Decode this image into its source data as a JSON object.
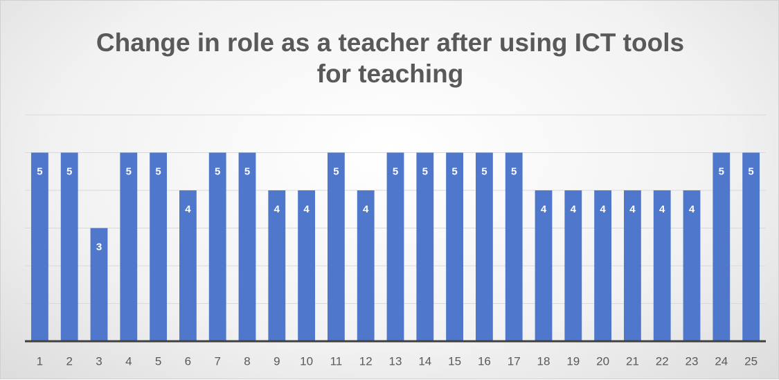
{
  "chart_data": {
    "type": "bar",
    "title": "Change in role as a teacher after using ICT tools for teaching",
    "categories": [
      "1",
      "2",
      "3",
      "4",
      "5",
      "6",
      "7",
      "8",
      "9",
      "10",
      "11",
      "12",
      "13",
      "14",
      "15",
      "16",
      "17",
      "18",
      "19",
      "20",
      "21",
      "22",
      "23",
      "24",
      "25"
    ],
    "values": [
      5,
      5,
      3,
      5,
      5,
      4,
      5,
      5,
      4,
      4,
      5,
      4,
      5,
      5,
      5,
      5,
      5,
      4,
      4,
      4,
      4,
      4,
      4,
      5,
      5
    ],
    "color": "#4f78cc",
    "ylim": [
      0,
      6
    ],
    "yticks": [
      0,
      1,
      2,
      3,
      4,
      5,
      6
    ],
    "grid": true
  }
}
